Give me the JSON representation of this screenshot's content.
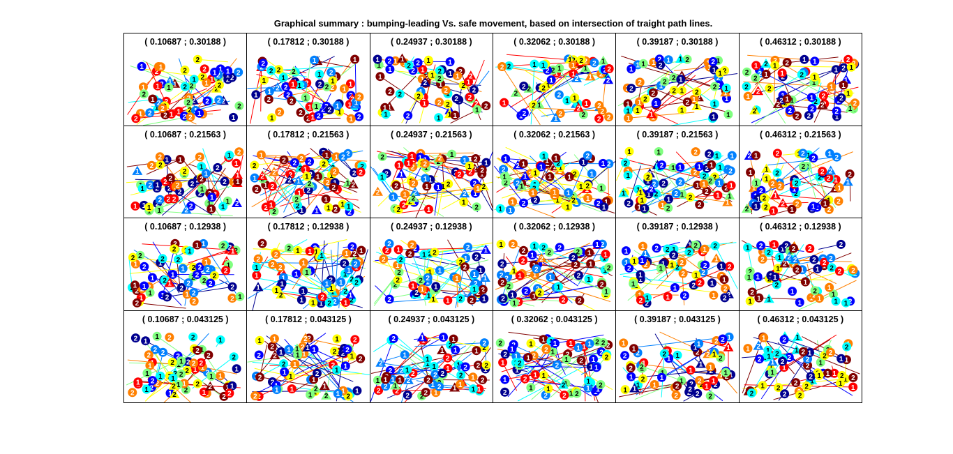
{
  "chart_data": {
    "type": "scatter",
    "title": "Graphical summary : bumping-leading Vs. safe movement, based on intersection of traight path lines.",
    "colormap": [
      "#00008f",
      "#0000ff",
      "#0080ff",
      "#00ffff",
      "#80ff80",
      "#ffff00",
      "#ff8000",
      "#ff0000",
      "#800000"
    ],
    "marker_labels": [
      "1",
      "2"
    ],
    "marker_shapes": [
      "circle",
      "triangle"
    ],
    "panels": [
      {
        "label": "( 0.10687 ; 0.30188 )"
      },
      {
        "label": "( 0.17812 ; 0.30188 )"
      },
      {
        "label": "( 0.24937 ; 0.30188 )"
      },
      {
        "label": "( 0.32062 ; 0.30188 )"
      },
      {
        "label": "( 0.39187 ; 0.30188 )"
      },
      {
        "label": "( 0.46312 ; 0.30188 )"
      },
      {
        "label": "( 0.10687 ; 0.21563 )"
      },
      {
        "label": "( 0.17812 ; 0.21563 )"
      },
      {
        "label": "( 0.24937 ; 0.21563 )"
      },
      {
        "label": "( 0.32062 ; 0.21563 )"
      },
      {
        "label": "( 0.39187 ; 0.21563 )"
      },
      {
        "label": "( 0.46312 ; 0.21563 )"
      },
      {
        "label": "( 0.10687 ; 0.12938 )"
      },
      {
        "label": "( 0.17812 ; 0.12938 )"
      },
      {
        "label": "( 0.24937 ; 0.12938 )"
      },
      {
        "label": "( 0.32062 ; 0.12938 )"
      },
      {
        "label": "( 0.39187 ; 0.12938 )"
      },
      {
        "label": "( 0.46312 ; 0.12938 )"
      },
      {
        "label": "( 0.10687 ; 0.043125 )"
      },
      {
        "label": "( 0.17812 ; 0.043125 )"
      },
      {
        "label": "( 0.24937 ; 0.043125 )"
      },
      {
        "label": "( 0.32062 ; 0.043125 )"
      },
      {
        "label": "( 0.39187 ; 0.043125 )"
      },
      {
        "label": "( 0.46312 ; 0.043125 )"
      }
    ]
  }
}
